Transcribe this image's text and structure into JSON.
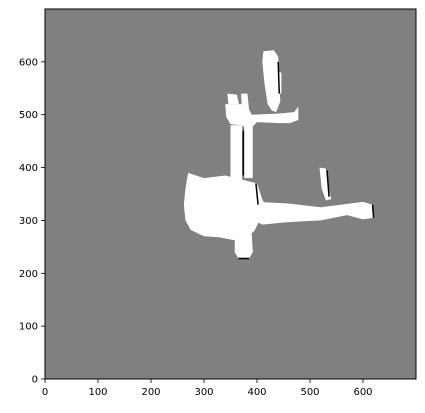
{
  "figure": {
    "background": "#ffffff",
    "map_unknown_color": "#808080",
    "map_free_color": "#ffffff",
    "map_obstacle_color": "#000000"
  },
  "axes": {
    "x_range": [
      0,
      700
    ],
    "y_range": [
      0,
      700
    ],
    "x_ticks": [
      0,
      100,
      200,
      300,
      400,
      500,
      600
    ],
    "y_ticks": [
      0,
      100,
      200,
      300,
      400,
      500,
      600
    ],
    "origin": "lower"
  },
  "map": {
    "description_free": "occupancy grid, free space in white",
    "free_regions": [
      {
        "name": "upper-corridor",
        "points": [
          [
            412,
            620
          ],
          [
            432,
            622
          ],
          [
            440,
            610
          ],
          [
            442,
            560
          ],
          [
            444,
            525
          ],
          [
            436,
            505
          ],
          [
            428,
            508
          ],
          [
            420,
            520
          ],
          [
            414,
            560
          ],
          [
            410,
            600
          ]
        ]
      },
      {
        "name": "upper-corridor-right",
        "points": [
          [
            436,
            580
          ],
          [
            446,
            580
          ],
          [
            446,
            540
          ],
          [
            436,
            540
          ]
        ]
      },
      {
        "name": "upper-wing",
        "points": [
          [
            340,
            520
          ],
          [
            380,
            520
          ],
          [
            390,
            500
          ],
          [
            440,
            502
          ],
          [
            470,
            505
          ],
          [
            478,
            515
          ],
          [
            478,
            490
          ],
          [
            462,
            484
          ],
          [
            440,
            484
          ],
          [
            400,
            486
          ],
          [
            390,
            476
          ],
          [
            378,
            474
          ],
          [
            372,
            480
          ],
          [
            350,
            482
          ],
          [
            342,
            496
          ]
        ]
      },
      {
        "name": "upper-left-spur",
        "points": [
          [
            344,
            540
          ],
          [
            362,
            538
          ],
          [
            366,
            520
          ],
          [
            346,
            520
          ]
        ]
      },
      {
        "name": "upper-mid-block",
        "points": [
          [
            370,
            540
          ],
          [
            382,
            540
          ],
          [
            386,
            500
          ],
          [
            372,
            500
          ]
        ]
      },
      {
        "name": "vertical-shaft",
        "points": [
          [
            350,
            480
          ],
          [
            372,
            480
          ],
          [
            372,
            360
          ],
          [
            356,
            355
          ],
          [
            350,
            380
          ]
        ]
      },
      {
        "name": "vertical-shaft-right",
        "points": [
          [
            376,
            480
          ],
          [
            392,
            480
          ],
          [
            392,
            380
          ],
          [
            376,
            380
          ]
        ]
      },
      {
        "name": "central-hub",
        "points": [
          [
            270,
            390
          ],
          [
            300,
            380
          ],
          [
            340,
            385
          ],
          [
            380,
            375
          ],
          [
            400,
            370
          ],
          [
            410,
            340
          ],
          [
            420,
            320
          ],
          [
            405,
            300
          ],
          [
            395,
            280
          ],
          [
            380,
            268
          ],
          [
            360,
            262
          ],
          [
            330,
            268
          ],
          [
            300,
            270
          ],
          [
            275,
            282
          ],
          [
            265,
            300
          ],
          [
            262,
            330
          ],
          [
            265,
            360
          ]
        ]
      },
      {
        "name": "east-corridor",
        "points": [
          [
            400,
            335
          ],
          [
            460,
            332
          ],
          [
            520,
            325
          ],
          [
            560,
            330
          ],
          [
            600,
            335
          ],
          [
            618,
            330
          ],
          [
            620,
            305
          ],
          [
            600,
            302
          ],
          [
            570,
            310
          ],
          [
            520,
            300
          ],
          [
            480,
            298
          ],
          [
            450,
            296
          ],
          [
            410,
            292
          ],
          [
            395,
            300
          ]
        ]
      },
      {
        "name": "east-stub",
        "points": [
          [
            518,
            400
          ],
          [
            530,
            398
          ],
          [
            534,
            370
          ],
          [
            540,
            340
          ],
          [
            530,
            338
          ],
          [
            522,
            360
          ]
        ]
      },
      {
        "name": "south-stub",
        "points": [
          [
            358,
            275
          ],
          [
            390,
            275
          ],
          [
            392,
            240
          ],
          [
            385,
            228
          ],
          [
            365,
            228
          ],
          [
            358,
            240
          ]
        ]
      }
    ],
    "obstacle_edges": [
      {
        "name": "wall-right-corridor",
        "points": [
          [
            440,
            600
          ],
          [
            442,
            540
          ]
        ]
      },
      {
        "name": "wall-hub-east",
        "points": [
          [
            398,
            370
          ],
          [
            402,
            330
          ]
        ]
      },
      {
        "name": "wall-east-stub",
        "points": [
          [
            532,
            395
          ],
          [
            536,
            345
          ]
        ]
      },
      {
        "name": "wall-east-end",
        "points": [
          [
            618,
            330
          ],
          [
            620,
            305
          ]
        ]
      },
      {
        "name": "wall-shaft",
        "points": [
          [
            374,
            470
          ],
          [
            374,
            385
          ]
        ]
      },
      {
        "name": "wall-south",
        "points": [
          [
            365,
            228
          ],
          [
            385,
            228
          ]
        ]
      }
    ]
  }
}
